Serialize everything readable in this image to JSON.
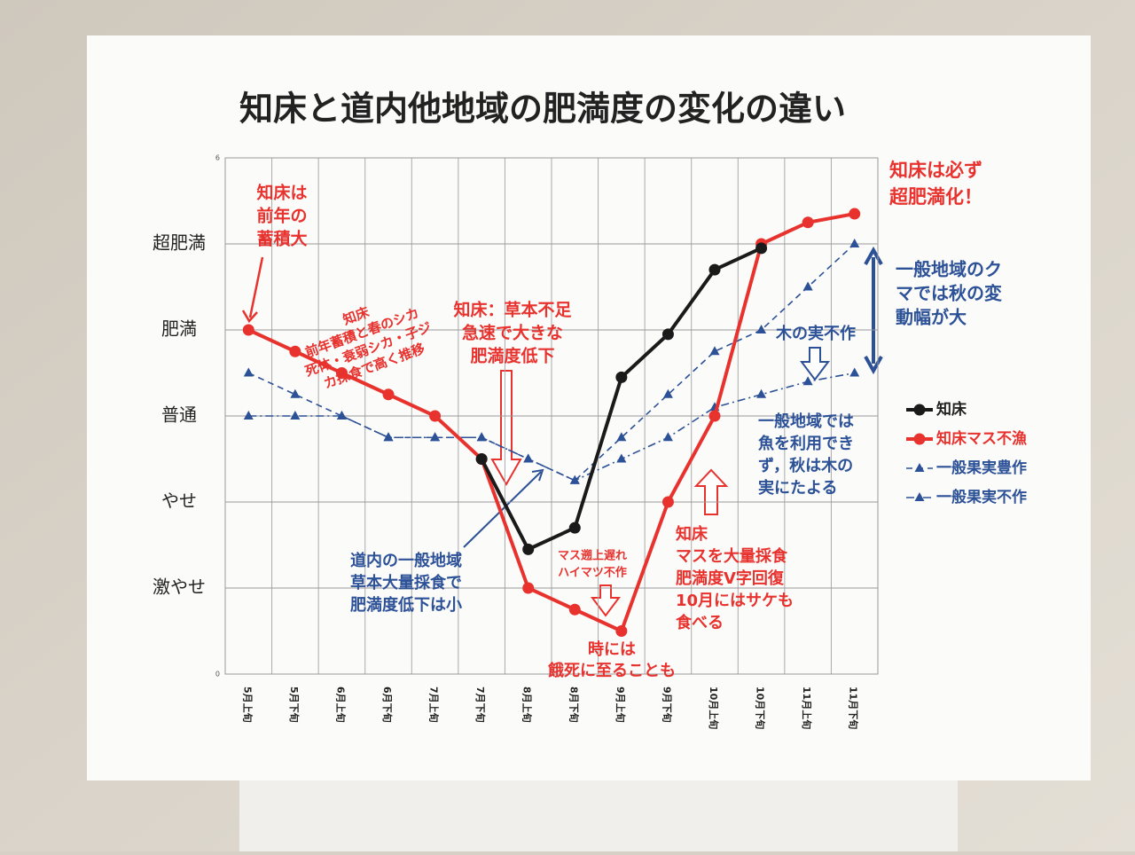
{
  "chart_data": {
    "type": "line",
    "title": "知床と道内他地域の肥満度の変化の違い",
    "categories": [
      "5月上旬",
      "5月下旬",
      "6月上旬",
      "6月下旬",
      "7月上旬",
      "7月下旬",
      "8月上旬",
      "8月下旬",
      "9月上旬",
      "9月下旬",
      "10月上旬",
      "10月下旬",
      "11月上旬",
      "11月下旬"
    ],
    "ylim": [
      0,
      6
    ],
    "yticks": [
      0,
      {
        "value": 1,
        "label": "激やせ"
      },
      {
        "value": 2,
        "label": "やせ"
      },
      {
        "value": 3,
        "label": "普通"
      },
      {
        "value": 4,
        "label": "肥満"
      },
      {
        "value": 5,
        "label": "超肥満"
      },
      6
    ],
    "grid": true,
    "series": [
      {
        "name": "知床",
        "color": "#1a1a1a",
        "marker": "circle",
        "dash": "solid",
        "values": [
          null,
          null,
          null,
          null,
          null,
          2.5,
          1.45,
          1.7,
          3.45,
          3.95,
          4.7,
          4.95,
          null,
          null
        ]
      },
      {
        "name": "知床マス不漁",
        "color": "#e8322e",
        "marker": "circle",
        "dash": "solid",
        "values": [
          4,
          3.75,
          3.5,
          3.25,
          3,
          2.5,
          1,
          0.75,
          0.5,
          2,
          3,
          5,
          5.25,
          5.35
        ]
      },
      {
        "name": "一般果実豊作",
        "color": "#2c5197",
        "marker": "triangle",
        "dash": "dash",
        "values": [
          3.5,
          3.25,
          3,
          2.75,
          2.75,
          2.75,
          2.5,
          2.25,
          2.75,
          3.25,
          3.75,
          4,
          4.5,
          5
        ]
      },
      {
        "name": "一般果実不作",
        "color": "#2c5197",
        "marker": "triangle",
        "dash": "dashdot",
        "values": [
          3,
          3,
          3,
          2.75,
          2.75,
          2.75,
          2.5,
          2.25,
          2.5,
          2.75,
          3.1,
          3.25,
          3.4,
          3.5
        ]
      }
    ],
    "annotations": [
      {
        "color": "#e8322e",
        "lines": [
          "知床は",
          "前年の",
          "蓄積大"
        ]
      },
      {
        "color": "#e8322e",
        "lines": [
          "知床",
          "前年蓄積と春のシカ",
          "死体・衰弱シカ・子ジ",
          "カ採食で高く推移"
        ]
      },
      {
        "color": "#e8322e",
        "lines": [
          "知床：草本不足",
          "急速で大きな",
          "肥満度低下"
        ]
      },
      {
        "color": "#2c5197",
        "lines": [
          "道内の一般地域",
          "草本大量採食で",
          "肥満度低下は小"
        ]
      },
      {
        "color": "#e8322e",
        "lines": [
          "マス遡上遅れ",
          "ハイマツ不作"
        ]
      },
      {
        "color": "#e8322e",
        "lines": [
          "時には",
          "餓死に至ることも"
        ]
      },
      {
        "color": "#e8322e",
        "lines": [
          "知床",
          "マスを大量採食",
          "肥満度V字回復",
          "10月にはサケも",
          "食べる"
        ]
      },
      {
        "color": "#e8322e",
        "lines": [
          "知床は必ず",
          "超肥満化！"
        ]
      },
      {
        "color": "#2c5197",
        "lines": [
          "一般地域のク",
          "マでは秋の変",
          "動幅が大"
        ]
      },
      {
        "color": "#2c5197",
        "lines": [
          "木の実不作"
        ]
      },
      {
        "color": "#2c5197",
        "lines": [
          "一般地域では",
          "魚を利用でき",
          "ず，秋は木の",
          "実にたよる"
        ]
      }
    ]
  }
}
